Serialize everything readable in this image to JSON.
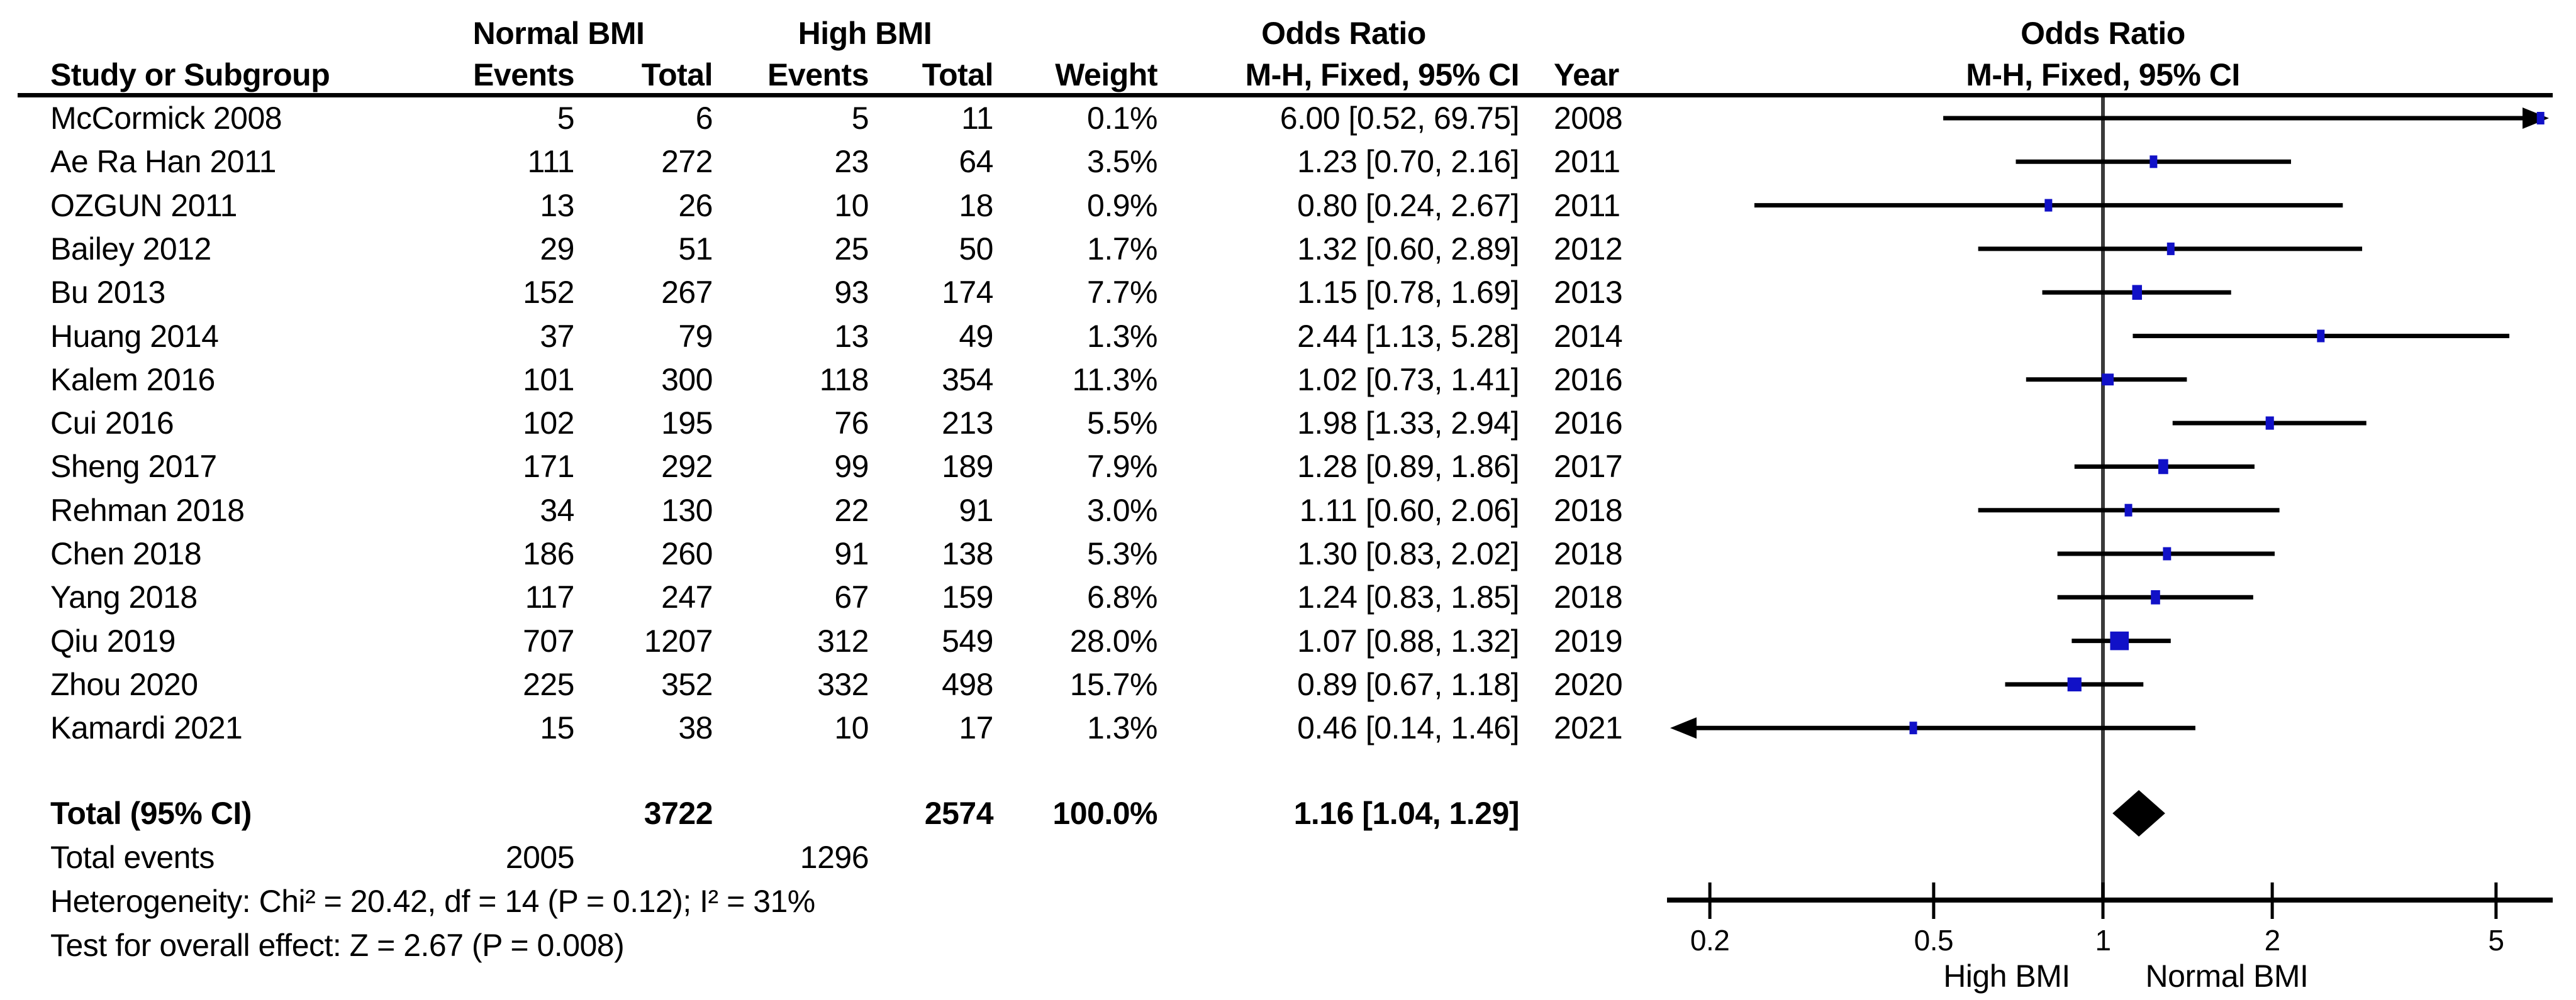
{
  "chart_data": {
    "type": "forest",
    "effect_measure": "Odds Ratio",
    "method": "M-H, Fixed, 95% CI",
    "columns": {
      "study": "Study or Subgroup",
      "group1": "Normal BMI",
      "group2": "High BMI",
      "events": "Events",
      "total": "Total",
      "weight": "Weight",
      "or_title": "Odds Ratio",
      "or_sub": "M-H, Fixed, 95% CI",
      "year": "Year",
      "plot_title": "Odds Ratio",
      "plot_sub": "M-H, Fixed, 95% CI"
    },
    "studies": [
      {
        "name": "McCormick 2008",
        "events1": 5,
        "total1": 6,
        "events2": 5,
        "total2": 11,
        "weight": 0.1,
        "or": 6.0,
        "ci_low": 0.52,
        "ci_high": 69.75,
        "ci_text": "6.00 [0.52, 69.75]",
        "year": 2008
      },
      {
        "name": "Ae Ra Han 2011",
        "events1": 111,
        "total1": 272,
        "events2": 23,
        "total2": 64,
        "weight": 3.5,
        "or": 1.23,
        "ci_low": 0.7,
        "ci_high": 2.16,
        "ci_text": "1.23 [0.70, 2.16]",
        "year": 2011
      },
      {
        "name": "OZGUN 2011",
        "events1": 13,
        "total1": 26,
        "events2": 10,
        "total2": 18,
        "weight": 0.9,
        "or": 0.8,
        "ci_low": 0.24,
        "ci_high": 2.67,
        "ci_text": "0.80 [0.24, 2.67]",
        "year": 2011
      },
      {
        "name": "Bailey 2012",
        "events1": 29,
        "total1": 51,
        "events2": 25,
        "total2": 50,
        "weight": 1.7,
        "or": 1.32,
        "ci_low": 0.6,
        "ci_high": 2.89,
        "ci_text": "1.32 [0.60, 2.89]",
        "year": 2012
      },
      {
        "name": "Bu 2013",
        "events1": 152,
        "total1": 267,
        "events2": 93,
        "total2": 174,
        "weight": 7.7,
        "or": 1.15,
        "ci_low": 0.78,
        "ci_high": 1.69,
        "ci_text": "1.15 [0.78, 1.69]",
        "year": 2013
      },
      {
        "name": "Huang 2014",
        "events1": 37,
        "total1": 79,
        "events2": 13,
        "total2": 49,
        "weight": 1.3,
        "or": 2.44,
        "ci_low": 1.13,
        "ci_high": 5.28,
        "ci_text": "2.44 [1.13, 5.28]",
        "year": 2014
      },
      {
        "name": "Kalem 2016",
        "events1": 101,
        "total1": 300,
        "events2": 118,
        "total2": 354,
        "weight": 11.3,
        "or": 1.02,
        "ci_low": 0.73,
        "ci_high": 1.41,
        "ci_text": "1.02 [0.73, 1.41]",
        "year": 2016
      },
      {
        "name": "Cui 2016",
        "events1": 102,
        "total1": 195,
        "events2": 76,
        "total2": 213,
        "weight": 5.5,
        "or": 1.98,
        "ci_low": 1.33,
        "ci_high": 2.94,
        "ci_text": "1.98 [1.33, 2.94]",
        "year": 2016
      },
      {
        "name": "Sheng 2017",
        "events1": 171,
        "total1": 292,
        "events2": 99,
        "total2": 189,
        "weight": 7.9,
        "or": 1.28,
        "ci_low": 0.89,
        "ci_high": 1.86,
        "ci_text": "1.28 [0.89, 1.86]",
        "year": 2017
      },
      {
        "name": "Rehman 2018",
        "events1": 34,
        "total1": 130,
        "events2": 22,
        "total2": 91,
        "weight": 3.0,
        "or": 1.11,
        "ci_low": 0.6,
        "ci_high": 2.06,
        "ci_text": "1.11 [0.60, 2.06]",
        "year": 2018
      },
      {
        "name": "Chen 2018",
        "events1": 186,
        "total1": 260,
        "events2": 91,
        "total2": 138,
        "weight": 5.3,
        "or": 1.3,
        "ci_low": 0.83,
        "ci_high": 2.02,
        "ci_text": "1.30 [0.83, 2.02]",
        "year": 2018
      },
      {
        "name": "Yang 2018",
        "events1": 117,
        "total1": 247,
        "events2": 67,
        "total2": 159,
        "weight": 6.8,
        "or": 1.24,
        "ci_low": 0.83,
        "ci_high": 1.85,
        "ci_text": "1.24 [0.83, 1.85]",
        "year": 2018
      },
      {
        "name": "Qiu 2019",
        "events1": 707,
        "total1": 1207,
        "events2": 312,
        "total2": 549,
        "weight": 28.0,
        "or": 1.07,
        "ci_low": 0.88,
        "ci_high": 1.32,
        "ci_text": "1.07 [0.88, 1.32]",
        "year": 2019
      },
      {
        "name": "Zhou 2020",
        "events1": 225,
        "total1": 352,
        "events2": 332,
        "total2": 498,
        "weight": 15.7,
        "or": 0.89,
        "ci_low": 0.67,
        "ci_high": 1.18,
        "ci_text": "0.89 [0.67, 1.18]",
        "year": 2020
      },
      {
        "name": "Kamardi 2021",
        "events1": 15,
        "total1": 38,
        "events2": 10,
        "total2": 17,
        "weight": 1.3,
        "or": 0.46,
        "ci_low": 0.14,
        "ci_high": 1.46,
        "ci_text": "0.46 [0.14, 1.46]",
        "year": 2021
      }
    ],
    "total": {
      "label": "Total (95% CI)",
      "total1": 3722,
      "total2": 2574,
      "weight_text": "100.0%",
      "or": 1.16,
      "ci_low": 1.04,
      "ci_high": 1.29,
      "ci_text": "1.16 [1.04, 1.29]"
    },
    "total_events": {
      "label": "Total events",
      "events1": 2005,
      "events2": 1296
    },
    "heterogeneity": "Heterogeneity: Chi² = 20.42, df = 14 (P = 0.12); I² = 31%",
    "overall_effect": "Test for overall effect: Z = 2.67 (P = 0.008)",
    "x_axis": {
      "scale": "log",
      "ticks": [
        0.2,
        0.5,
        1,
        2,
        5
      ],
      "tick_labels": [
        "0.2",
        "0.5",
        "1",
        "2",
        "5"
      ],
      "range_shown": [
        0.2,
        5
      ],
      "left_label": "High BMI",
      "right_label": "Normal BMI"
    },
    "colors": {
      "marker": "#1111c7",
      "ci_line": "#000000",
      "diamond": "#000000",
      "centerline": "#3a3a3a",
      "text": "#000000",
      "background": "#ffffff"
    }
  }
}
